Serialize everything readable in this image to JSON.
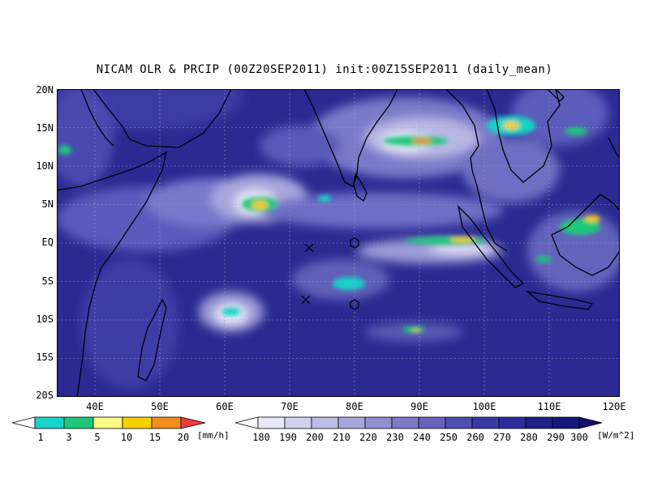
{
  "title": "NICAM OLR & PRCIP (00Z20SEP2011) init:00Z15SEP2011 (daily_mean)",
  "lat_labels": [
    "20N",
    "15N",
    "10N",
    "5N",
    "EQ",
    "5S",
    "10S",
    "15S",
    "20S"
  ],
  "lon_labels": [
    "40E",
    "50E",
    "60E",
    "70E",
    "80E",
    "90E",
    "100E",
    "110E",
    "120E"
  ],
  "precip_colorbar": {
    "labels": [
      "1",
      "3",
      "5",
      "10",
      "15",
      "20"
    ],
    "unit": "[mm/h]",
    "colors": [
      "#ffffff",
      "#19d2c8",
      "#1ec87a",
      "#fafa82",
      "#f5d200",
      "#f58c1e",
      "#f03c3c"
    ]
  },
  "olr_colorbar": {
    "labels": [
      "180",
      "190",
      "200",
      "210",
      "220",
      "230",
      "240",
      "250",
      "260",
      "270",
      "280",
      "290",
      "300"
    ],
    "unit": "[W/m^2]",
    "colors": [
      "#ffffff",
      "#e8e8f6",
      "#d2d2ee",
      "#bcbce4",
      "#a6a6da",
      "#9090d0",
      "#7a7ac6",
      "#6464bc",
      "#4e4eb2",
      "#3838a6",
      "#2c2c98",
      "#20208a",
      "#16167c",
      "#10106e"
    ]
  },
  "map": {
    "background_color": "#2a2a92",
    "extent": {
      "lon": [
        35,
        120
      ],
      "lat": [
        -20,
        20
      ]
    },
    "markers": [
      {
        "type": "x",
        "lon": 73,
        "lat": -0.8
      },
      {
        "type": "x",
        "lon": 72.5,
        "lat": -7.3
      },
      {
        "type": "hex",
        "lon": 80,
        "lat": 0
      },
      {
        "type": "hex",
        "lon": 80,
        "lat": -8
      }
    ]
  }
}
